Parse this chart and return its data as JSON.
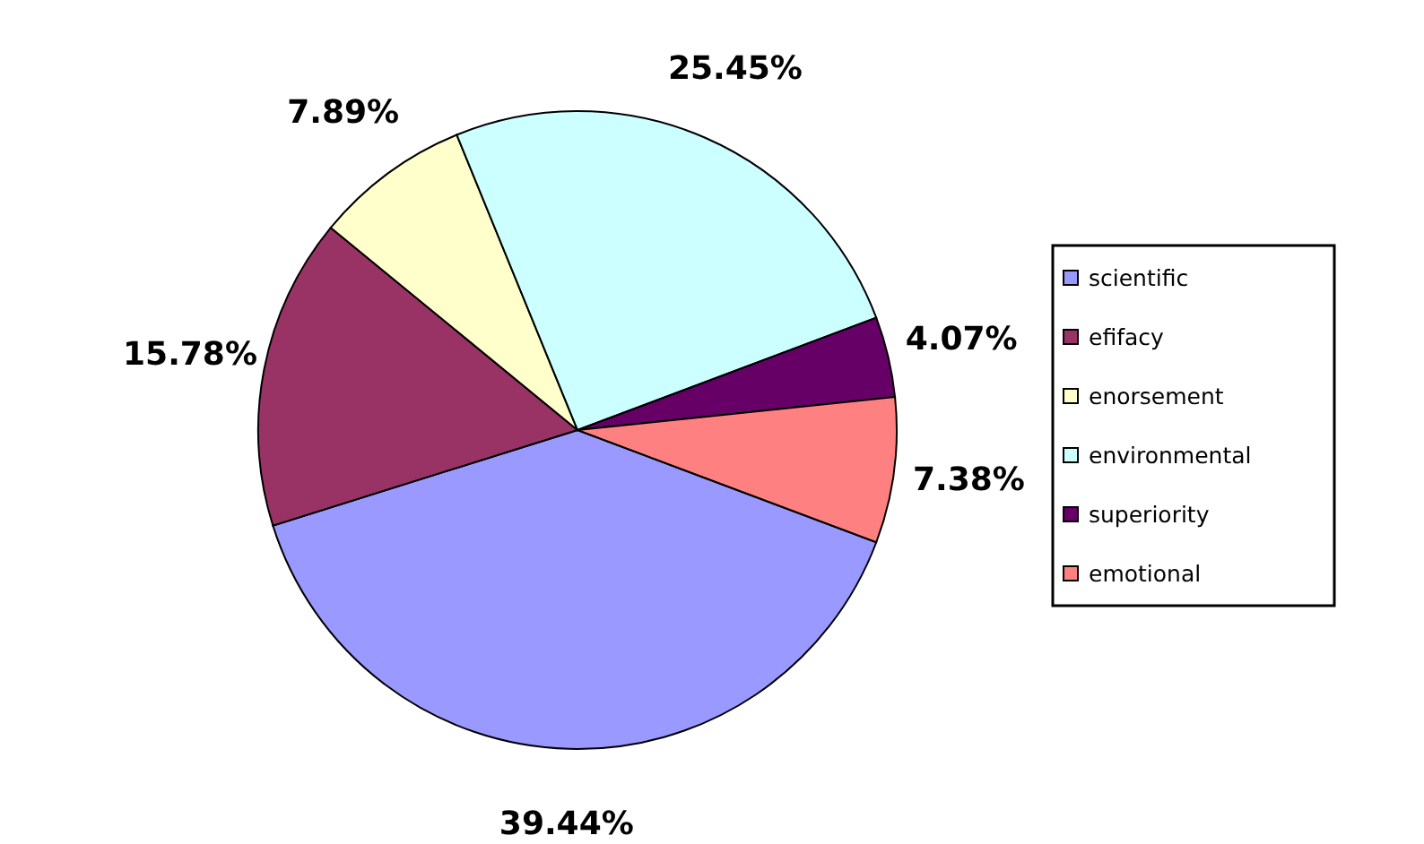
{
  "chart_data": {
    "type": "pie",
    "categories": [
      "scientific",
      "efifacy",
      "enorsement",
      "environmental",
      "superiority",
      "emotional"
    ],
    "values": [
      39.44,
      15.78,
      7.89,
      25.45,
      4.07,
      7.38
    ],
    "colors": [
      "#9999ff",
      "#993366",
      "#ffffcc",
      "#ccffff",
      "#660066",
      "#ff8080"
    ],
    "value_labels": [
      "39.44%",
      "15.78%",
      "7.89%",
      "25.45%",
      "4.07%",
      "7.38%"
    ],
    "legend": "right"
  }
}
